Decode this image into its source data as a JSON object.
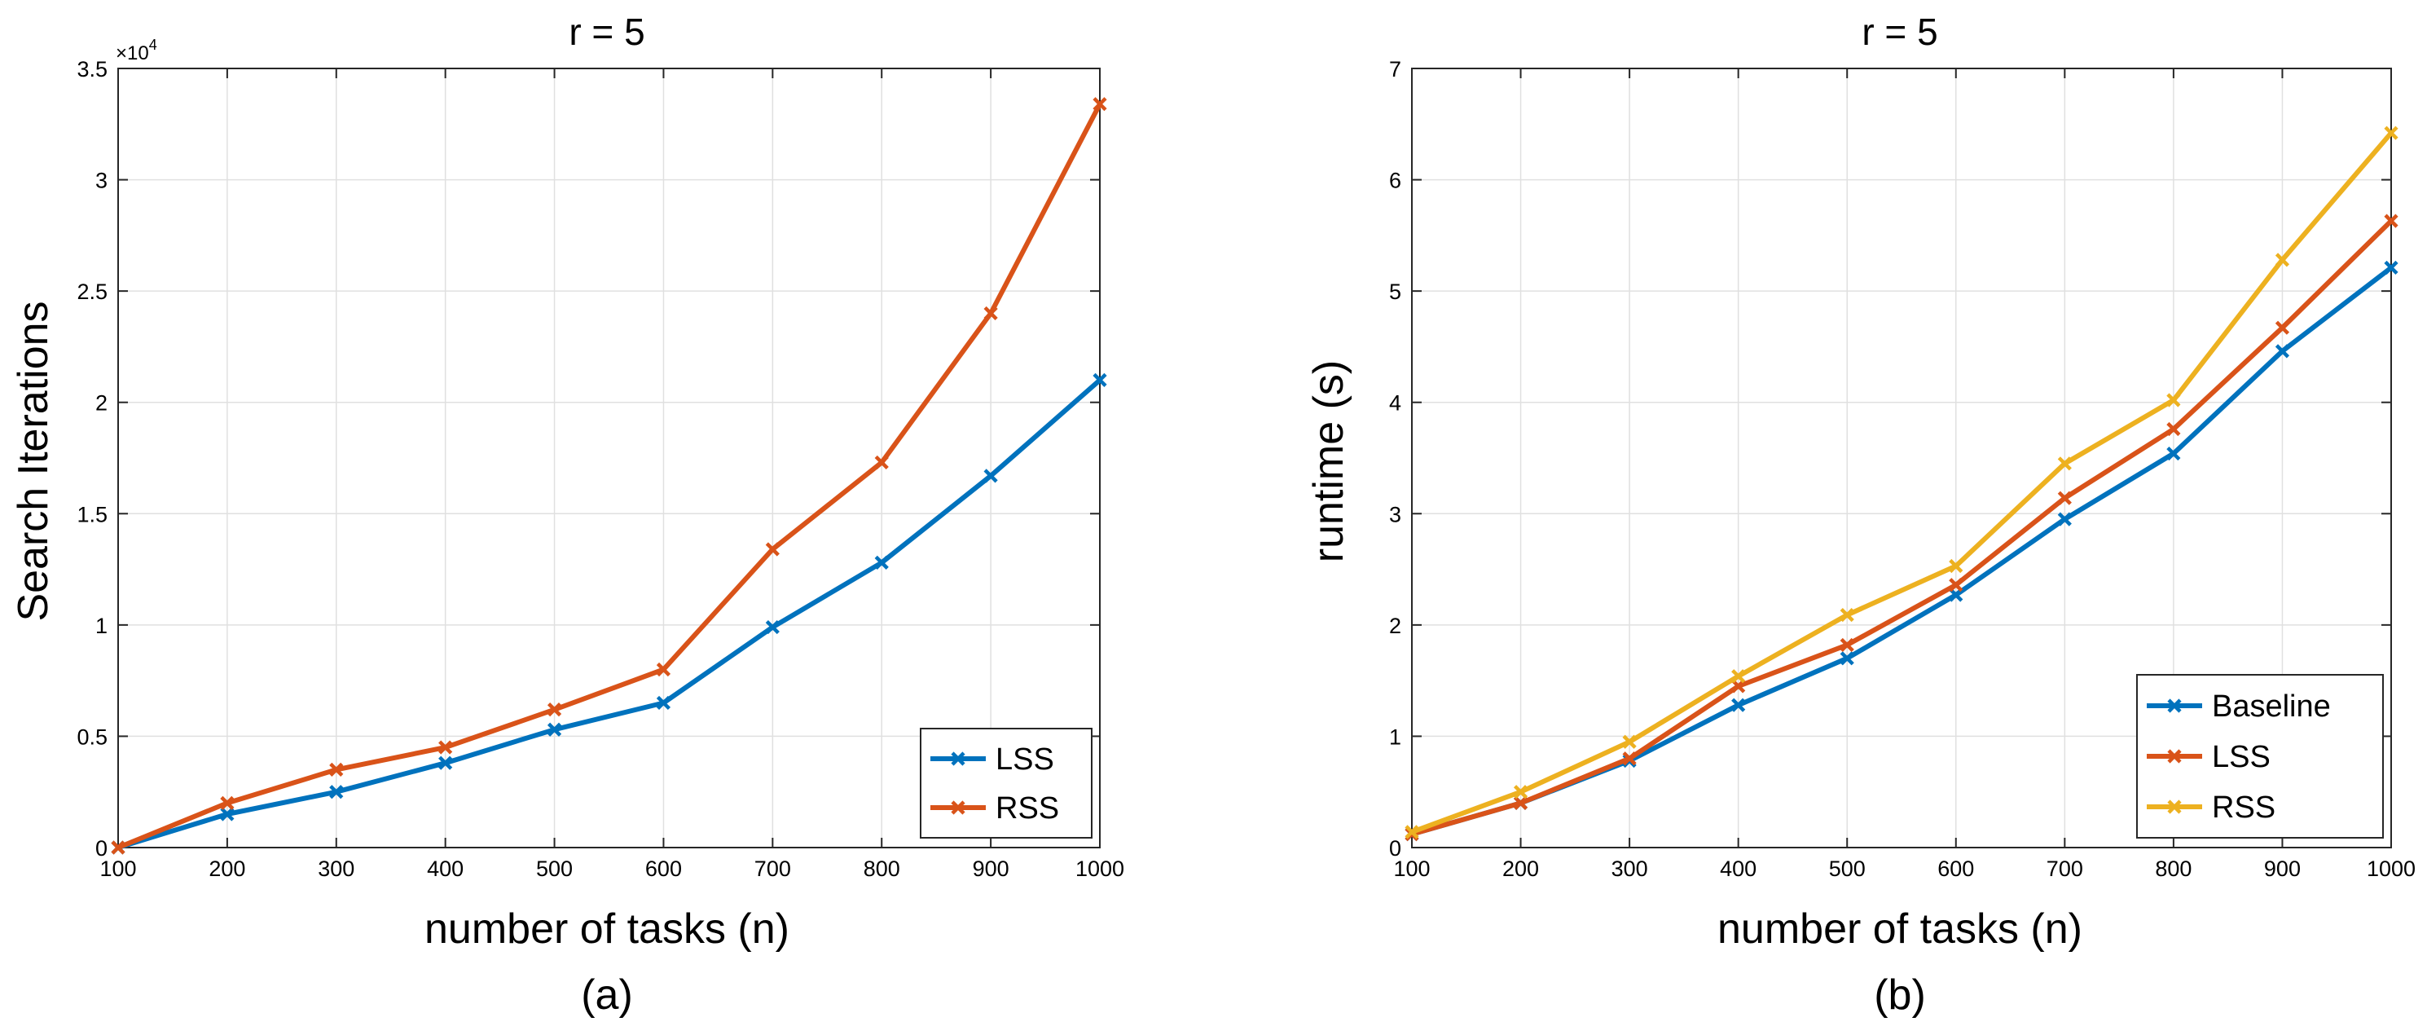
{
  "colors": {
    "blue": "#0072BD",
    "orange": "#D95319",
    "yellow": "#EDB120"
  },
  "chart_data": [
    {
      "type": "line",
      "title": "r = 5",
      "subcaption": "(a)",
      "xlabel": "number of tasks (n)",
      "ylabel": "Search Iterations",
      "y_exponent_label": "×10",
      "y_exponent": "4",
      "x": [
        100,
        200,
        300,
        400,
        500,
        600,
        700,
        800,
        900,
        1000
      ],
      "xlim": [
        100,
        1000
      ],
      "ylim": [
        0,
        3.5
      ],
      "xticks": [
        100,
        200,
        300,
        400,
        500,
        600,
        700,
        800,
        900,
        1000
      ],
      "yticks": [
        0,
        0.5,
        1,
        1.5,
        2,
        2.5,
        3,
        3.5
      ],
      "ytick_labels": [
        "0",
        "0.5",
        "1",
        "1.5",
        "2",
        "2.5",
        "3",
        "3.5"
      ],
      "grid": true,
      "legend": "bottom-right",
      "series": [
        {
          "name": "LSS",
          "color": "#0072BD",
          "values": [
            0,
            0.15,
            0.25,
            0.38,
            0.53,
            0.65,
            0.99,
            1.28,
            1.67,
            2.1
          ]
        },
        {
          "name": "RSS",
          "color": "#D95319",
          "values": [
            0,
            0.2,
            0.35,
            0.45,
            0.62,
            0.8,
            1.34,
            1.73,
            2.4,
            3.34
          ]
        }
      ]
    },
    {
      "type": "line",
      "title": "r = 5",
      "subcaption": "(b)",
      "xlabel": "number of tasks (n)",
      "ylabel": "runtime (s)",
      "x": [
        100,
        200,
        300,
        400,
        500,
        600,
        700,
        800,
        900,
        1000
      ],
      "xlim": [
        100,
        1000
      ],
      "ylim": [
        0,
        7
      ],
      "xticks": [
        100,
        200,
        300,
        400,
        500,
        600,
        700,
        800,
        900,
        1000
      ],
      "yticks": [
        0,
        1,
        2,
        3,
        4,
        5,
        6,
        7
      ],
      "ytick_labels": [
        "0",
        "1",
        "2",
        "3",
        "4",
        "5",
        "6",
        "7"
      ],
      "grid": true,
      "legend": "bottom-right",
      "series": [
        {
          "name": "Baseline",
          "color": "#0072BD",
          "values": [
            0.12,
            0.4,
            0.78,
            1.28,
            1.7,
            2.27,
            2.95,
            3.54,
            4.46,
            5.21
          ]
        },
        {
          "name": "LSS",
          "color": "#D95319",
          "values": [
            0.12,
            0.4,
            0.8,
            1.45,
            1.82,
            2.36,
            3.14,
            3.76,
            4.67,
            5.63
          ]
        },
        {
          "name": "RSS",
          "color": "#EDB120",
          "values": [
            0.14,
            0.5,
            0.95,
            1.54,
            2.09,
            2.53,
            3.45,
            4.02,
            5.28,
            6.42
          ]
        }
      ]
    }
  ]
}
